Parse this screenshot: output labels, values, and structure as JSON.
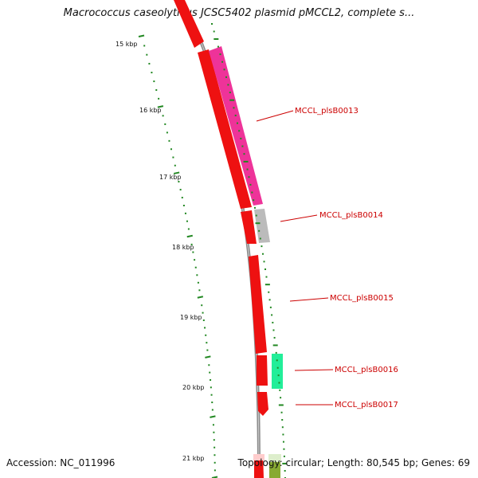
{
  "title": "Macrococcus caseolyticus JCSC5402 plasmid pMCCL2, complete s...",
  "footer": {
    "accession": "Accession: NC_011996",
    "summary": "Topology: circular; Length: 80,545 bp; Genes: 69"
  },
  "scale_labels": [
    "15 kbp",
    "16 kbp",
    "17 kbp",
    "18 kbp",
    "19 kbp",
    "20 kbp",
    "21 kbp"
  ],
  "gene_labels": [
    "MCCL_plsB0013",
    "MCCL_plsB0014",
    "MCCL_plsB0015",
    "MCCL_plsB0016",
    "MCCL_plsB0017"
  ],
  "colors": {
    "backbone": "#8a8a8a",
    "cds_forward": "#ee1111",
    "gene_plsB0013": "#ee3399",
    "gene_plsB0014": "#bbbbbb",
    "gene_plsB0016": "#22ee99",
    "tick": "#228822",
    "label_text": "#cc0000"
  }
}
